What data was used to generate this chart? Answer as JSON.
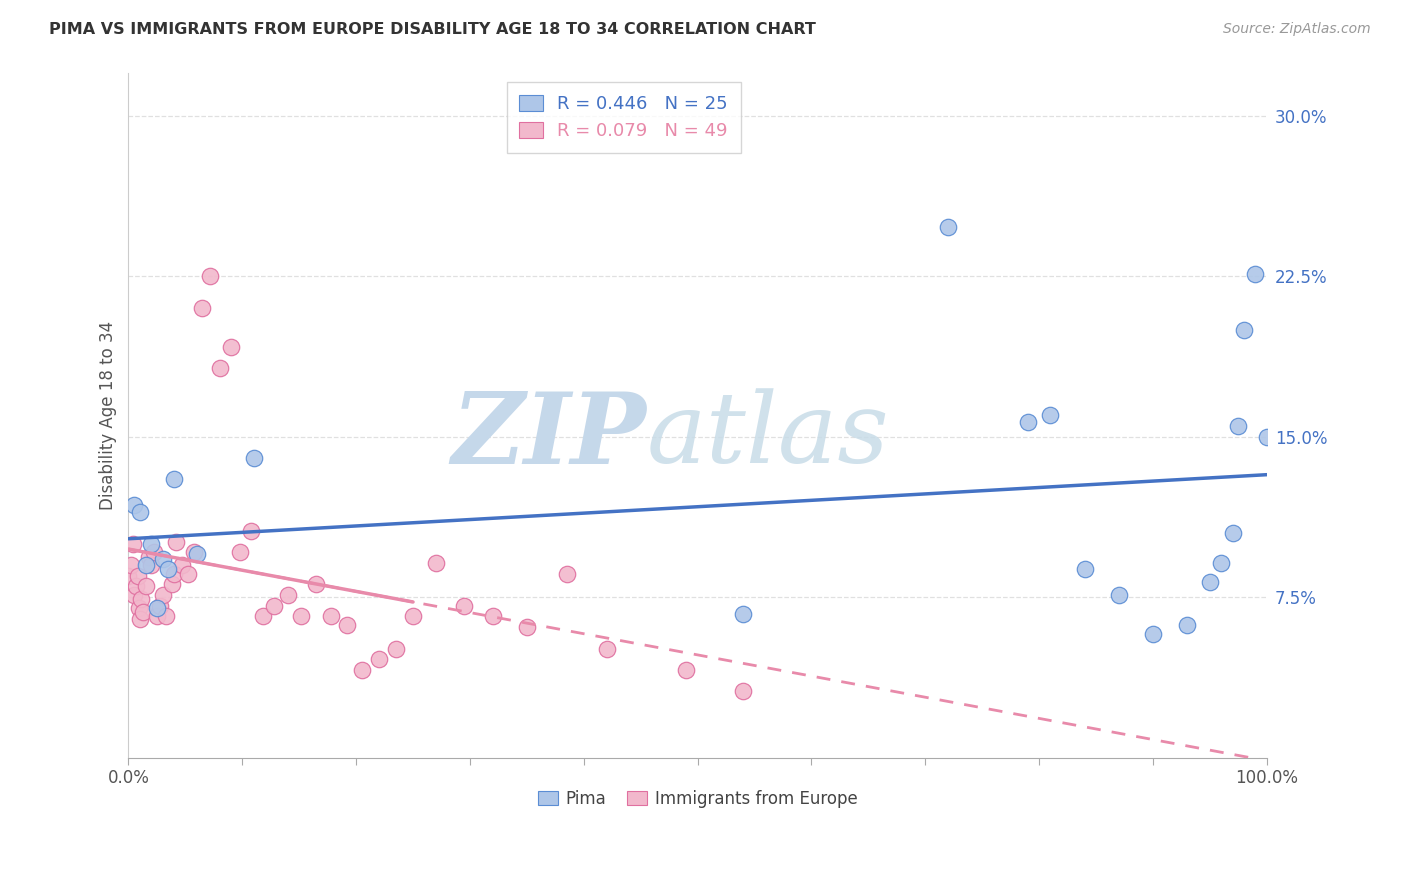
{
  "title": "PIMA VS IMMIGRANTS FROM EUROPE DISABILITY AGE 18 TO 34 CORRELATION CHART",
  "source": "Source: ZipAtlas.com",
  "ylabel": "Disability Age 18 to 34",
  "xlim": [
    0,
    1.0
  ],
  "ylim": [
    0,
    0.32
  ],
  "yticks": [
    0.075,
    0.15,
    0.225,
    0.3
  ],
  "ytick_labels": [
    "7.5%",
    "15.0%",
    "22.5%",
    "30.0%"
  ],
  "pima_color": "#aec6e8",
  "europe_color": "#f2b8cc",
  "pima_edge_color": "#5b8dd4",
  "europe_edge_color": "#e070a0",
  "pima_line_color": "#4472c4",
  "europe_line_color": "#e88aaa",
  "pima_R": 0.446,
  "pima_N": 25,
  "europe_R": 0.079,
  "europe_N": 49,
  "pima_x": [
    0.005,
    0.01,
    0.015,
    0.02,
    0.025,
    0.03,
    0.035,
    0.04,
    0.06,
    0.11,
    0.54,
    0.72,
    0.79,
    0.81,
    0.84,
    0.87,
    0.9,
    0.93,
    0.95,
    0.96,
    0.97,
    0.975,
    0.98,
    0.99,
    1.0
  ],
  "pima_y": [
    0.118,
    0.115,
    0.09,
    0.1,
    0.07,
    0.093,
    0.088,
    0.13,
    0.095,
    0.14,
    0.067,
    0.248,
    0.157,
    0.16,
    0.088,
    0.076,
    0.058,
    0.062,
    0.082,
    0.091,
    0.105,
    0.155,
    0.2,
    0.226,
    0.15
  ],
  "europe_x": [
    0.0,
    0.002,
    0.004,
    0.005,
    0.007,
    0.008,
    0.009,
    0.01,
    0.011,
    0.013,
    0.015,
    0.018,
    0.02,
    0.022,
    0.025,
    0.028,
    0.03,
    0.033,
    0.038,
    0.04,
    0.042,
    0.047,
    0.052,
    0.058,
    0.065,
    0.072,
    0.08,
    0.09,
    0.098,
    0.108,
    0.118,
    0.128,
    0.14,
    0.152,
    0.165,
    0.178,
    0.192,
    0.205,
    0.22,
    0.235,
    0.25,
    0.27,
    0.295,
    0.32,
    0.35,
    0.385,
    0.42,
    0.49,
    0.54
  ],
  "europe_y": [
    0.085,
    0.09,
    0.1,
    0.076,
    0.08,
    0.085,
    0.07,
    0.065,
    0.074,
    0.068,
    0.08,
    0.094,
    0.09,
    0.096,
    0.066,
    0.071,
    0.076,
    0.066,
    0.081,
    0.086,
    0.101,
    0.09,
    0.086,
    0.096,
    0.21,
    0.225,
    0.182,
    0.192,
    0.096,
    0.106,
    0.066,
    0.071,
    0.076,
    0.066,
    0.081,
    0.066,
    0.062,
    0.041,
    0.046,
    0.051,
    0.066,
    0.091,
    0.071,
    0.066,
    0.061,
    0.086,
    0.051,
    0.041,
    0.031
  ],
  "background_color": "#ffffff",
  "grid_color": "#e0e0e0",
  "watermark_zip_color": "#c5d8ea",
  "watermark_atlas_color": "#c8dce8"
}
